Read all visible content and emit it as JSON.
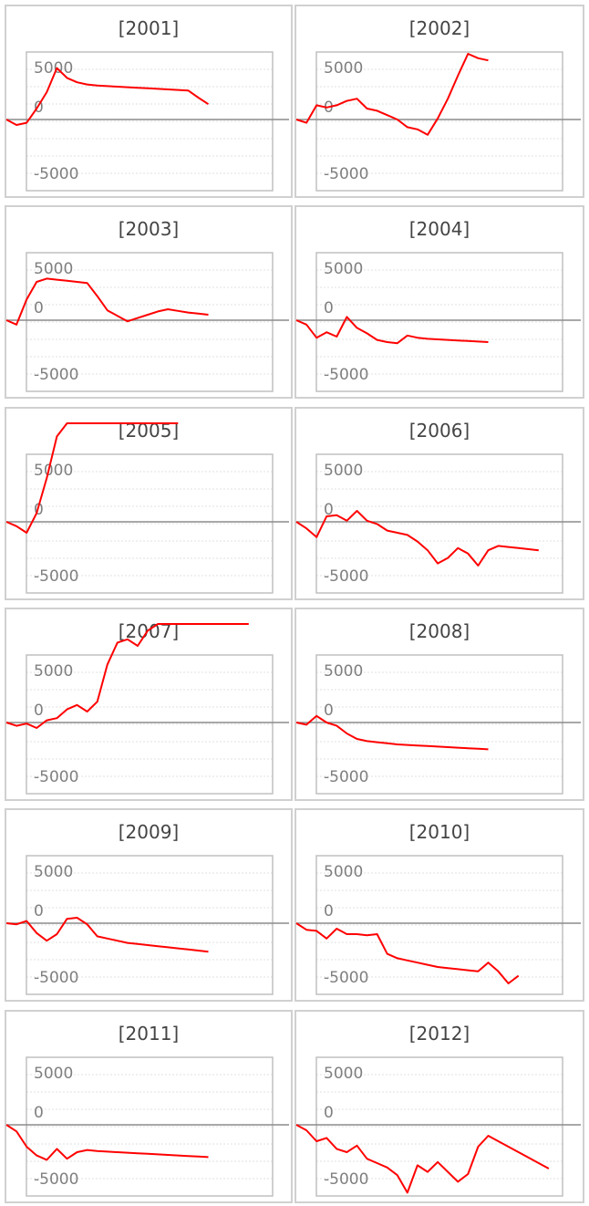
{
  "style": {
    "line_color": "#ff0000",
    "axis_color": "#8c8c8c",
    "frame_color": "#c0c0c0",
    "grid_color": "#e2e2e2"
  },
  "chart_data": [
    {
      "type": "line",
      "title": "[2001]",
      "yticks": [
        "5000",
        "0",
        "-5000"
      ],
      "ylim": [
        -9000,
        9000
      ],
      "xlim": [
        0,
        26
      ],
      "x": [
        0,
        1,
        2,
        3,
        4,
        5,
        6,
        7,
        8,
        9,
        10,
        11,
        12,
        13,
        14,
        15,
        16,
        17,
        18,
        19,
        20
      ],
      "values": [
        0,
        -500,
        -300,
        1000,
        2500,
        4700,
        3800,
        3400,
        3200,
        3100,
        3050,
        3000,
        2950,
        2900,
        2850,
        2800,
        2750,
        2700,
        2650,
        2000,
        1400
      ]
    },
    {
      "type": "line",
      "title": "[2002]",
      "yticks": [
        "5000",
        "0",
        "-5000"
      ],
      "ylim": [
        -9000,
        9000
      ],
      "xlim": [
        0,
        26
      ],
      "x": [
        0,
        1,
        2,
        3,
        4,
        5,
        6,
        7,
        8,
        9,
        10,
        11,
        12,
        13,
        14,
        15,
        16,
        17,
        18,
        19
      ],
      "values": [
        0,
        -300,
        1300,
        1100,
        1300,
        1700,
        1900,
        1000,
        800,
        400,
        0,
        -700,
        -900,
        -1400,
        100,
        1900,
        4000,
        6000,
        5600,
        5400
      ]
    },
    {
      "type": "line",
      "title": "[2003]",
      "yticks": [
        "5000",
        "0",
        "-5000"
      ],
      "ylim": [
        -9000,
        9000
      ],
      "xlim": [
        0,
        26
      ],
      "x": [
        0,
        1,
        2,
        3,
        4,
        5,
        6,
        7,
        8,
        9,
        10,
        11,
        12,
        13,
        14,
        15,
        16,
        17,
        18,
        19,
        20
      ],
      "values": [
        0,
        -400,
        1900,
        3500,
        3800,
        3700,
        3600,
        3500,
        3400,
        2200,
        900,
        400,
        -100,
        200,
        500,
        800,
        1000,
        850,
        700,
        600,
        500
      ]
    },
    {
      "type": "line",
      "title": "[2004]",
      "yticks": [
        "5000",
        "0",
        "-5000"
      ],
      "ylim": [
        -9000,
        9000
      ],
      "xlim": [
        0,
        26
      ],
      "x": [
        0,
        1,
        2,
        3,
        4,
        5,
        6,
        7,
        8,
        9,
        10,
        11,
        12,
        13,
        14,
        15,
        16,
        17,
        18,
        19
      ],
      "values": [
        0,
        -400,
        -1600,
        -1100,
        -1500,
        300,
        -700,
        -1200,
        -1800,
        -2000,
        -2100,
        -1400,
        -1600,
        -1700,
        -1750,
        -1800,
        -1850,
        -1900,
        -1950,
        -2000
      ]
    },
    {
      "type": "line",
      "title": "[2005]",
      "yticks": [
        "5000",
        "0",
        "-5000"
      ],
      "ylim": [
        -9000,
        9000
      ],
      "xlim": [
        0,
        26
      ],
      "x": [
        0,
        1,
        2,
        3,
        4,
        5,
        6,
        7,
        8,
        9,
        10,
        11,
        12,
        13,
        14,
        15,
        16,
        17
      ],
      "values": [
        0,
        -400,
        -1000,
        800,
        4000,
        7800,
        9000,
        9000,
        9000,
        9000,
        9000,
        9000,
        9000,
        9000,
        9000,
        9000,
        9000,
        9000
      ]
    },
    {
      "type": "line",
      "title": "[2006]",
      "yticks": [
        "5000",
        "0",
        "-5000"
      ],
      "ylim": [
        -9000,
        9000
      ],
      "xlim": [
        0,
        26
      ],
      "x": [
        0,
        1,
        2,
        3,
        4,
        5,
        6,
        7,
        8,
        9,
        10,
        11,
        12,
        13,
        14,
        15,
        16,
        17,
        18,
        19,
        20,
        21,
        22,
        23,
        24
      ],
      "values": [
        0,
        -600,
        -1400,
        500,
        600,
        100,
        1000,
        100,
        -200,
        -800,
        -1000,
        -1200,
        -1800,
        -2600,
        -3800,
        -3300,
        -2400,
        -2900,
        -4000,
        -2600,
        -2200,
        -2300,
        -2400,
        -2500,
        -2600
      ]
    },
    {
      "type": "line",
      "title": "[2007]",
      "yticks": [
        "5000",
        "0",
        "-5000"
      ],
      "ylim": [
        -9000,
        9000
      ],
      "xlim": [
        0,
        26
      ],
      "x": [
        0,
        1,
        2,
        3,
        4,
        5,
        6,
        7,
        8,
        9,
        10,
        11,
        12,
        13,
        14,
        15,
        16,
        17,
        18,
        19,
        20,
        21,
        22,
        23,
        24
      ],
      "values": [
        0,
        -300,
        -100,
        -500,
        200,
        400,
        1200,
        1600,
        1000,
        1900,
        5300,
        7300,
        7600,
        7000,
        8400,
        9000,
        9000,
        9000,
        9000,
        9000,
        9000,
        9000,
        9000,
        9000,
        9000
      ]
    },
    {
      "type": "line",
      "title": "[2008]",
      "yticks": [
        "5000",
        "0",
        "-5000"
      ],
      "ylim": [
        -9000,
        9000
      ],
      "xlim": [
        0,
        26
      ],
      "x": [
        0,
        1,
        2,
        3,
        4,
        5,
        6,
        7,
        8,
        9,
        10,
        11,
        12,
        13,
        14,
        15,
        16,
        17,
        18,
        19
      ],
      "values": [
        0,
        -200,
        600,
        0,
        -300,
        -1000,
        -1500,
        -1700,
        -1800,
        -1900,
        -2000,
        -2050,
        -2100,
        -2150,
        -2200,
        -2250,
        -2300,
        -2350,
        -2400,
        -2450
      ]
    },
    {
      "type": "line",
      "title": "[2009]",
      "yticks": [
        "5000",
        "0",
        "-5000"
      ],
      "ylim": [
        -9000,
        9000
      ],
      "xlim": [
        0,
        26
      ],
      "x": [
        0,
        1,
        2,
        3,
        4,
        5,
        6,
        7,
        8,
        9,
        10,
        11,
        12,
        13,
        14,
        15,
        16,
        17,
        18,
        19,
        20
      ],
      "values": [
        0,
        -100,
        200,
        -900,
        -1600,
        -1000,
        400,
        500,
        -100,
        -1200,
        -1400,
        -1600,
        -1800,
        -1900,
        -2000,
        -2100,
        -2200,
        -2300,
        -2400,
        -2500,
        -2600
      ]
    },
    {
      "type": "line",
      "title": "[2010]",
      "yticks": [
        "5000",
        "0",
        "-5000"
      ],
      "ylim": [
        -9000,
        9000
      ],
      "xlim": [
        0,
        26
      ],
      "x": [
        0,
        1,
        2,
        3,
        4,
        5,
        6,
        7,
        8,
        9,
        10,
        11,
        12,
        13,
        14,
        15,
        16,
        17,
        18,
        19,
        20,
        21,
        22
      ],
      "values": [
        0,
        -600,
        -700,
        -1400,
        -500,
        -1000,
        -1000,
        -1100,
        -1000,
        -2800,
        -3200,
        -3400,
        -3600,
        -3800,
        -4000,
        -4100,
        -4200,
        -4300,
        -4400,
        -3600,
        -4400,
        -5500,
        -4800
      ]
    },
    {
      "type": "line",
      "title": "[2011]",
      "yticks": [
        "5000",
        "0",
        "-5000"
      ],
      "ylim": [
        -9000,
        9000
      ],
      "xlim": [
        0,
        26
      ],
      "x": [
        0,
        1,
        2,
        3,
        4,
        5,
        6,
        7,
        8,
        9,
        10,
        11,
        12,
        13,
        14,
        15,
        16,
        17,
        18,
        19,
        20
      ],
      "values": [
        0,
        -600,
        -2000,
        -2800,
        -3200,
        -2200,
        -3100,
        -2500,
        -2300,
        -2400,
        -2450,
        -2500,
        -2550,
        -2600,
        -2650,
        -2700,
        -2750,
        -2800,
        -2850,
        -2900,
        -2950
      ]
    },
    {
      "type": "line",
      "title": "[2012]",
      "yticks": [
        "5000",
        "0",
        "-5000"
      ],
      "ylim": [
        -9000,
        9000
      ],
      "xlim": [
        0,
        26
      ],
      "x": [
        0,
        1,
        2,
        3,
        4,
        5,
        6,
        7,
        8,
        9,
        10,
        11,
        12,
        13,
        14,
        15,
        16,
        17,
        18,
        19,
        20,
        21,
        22,
        23,
        24,
        25
      ],
      "values": [
        0,
        -500,
        -1500,
        -1200,
        -2200,
        -2500,
        -1900,
        -3100,
        -3500,
        -3900,
        -4600,
        -6200,
        -3700,
        -4300,
        -3400,
        -4300,
        -5200,
        -4500,
        -2000,
        -1000,
        -1500,
        -2000,
        -2500,
        -3000,
        -3500,
        -4000
      ]
    }
  ]
}
